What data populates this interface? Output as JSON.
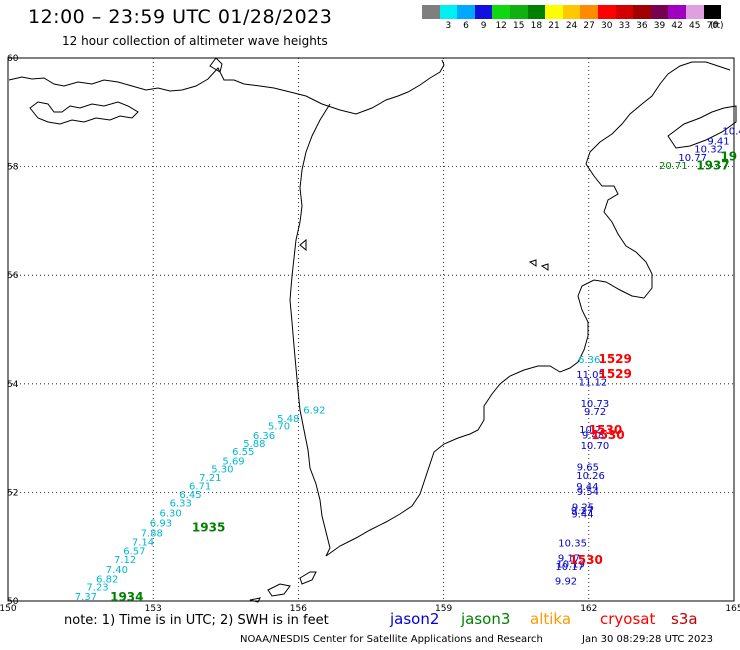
{
  "header": {
    "title": "12:00 – 23:59 UTC 01/28/2023",
    "subtitle": "12 hour collection of altimeter wave heights"
  },
  "color_scale": {
    "colors": [
      "#7f7f7f",
      "#00f0f0",
      "#00a8ff",
      "#1010e0",
      "#10d810",
      "#10b010",
      "#008000",
      "#ffff00",
      "#ffc800",
      "#ff8c00",
      "#ff0000",
      "#d40000",
      "#a00000",
      "#780050",
      "#a000c0",
      "#e0a0e0",
      "#000000"
    ],
    "labels": [
      "",
      "3",
      "6",
      "9",
      "12",
      "15",
      "18",
      "21",
      "24",
      "27",
      "30",
      "33",
      "36",
      "39",
      "42",
      "45",
      "70"
    ],
    "unit": "(ft)"
  },
  "map": {
    "lon_ticks": [
      "150",
      "153",
      "156",
      "159",
      "162",
      "165"
    ],
    "lat_ticks": [
      "50",
      "52",
      "54",
      "56",
      "58",
      "60"
    ],
    "grid": true
  },
  "tracks": [
    {
      "mission": "jason2-cyan",
      "color": "#00b8d0",
      "labels": [
        {
          "t": "7.37",
          "lon": 151.38,
          "lat": 50.02
        },
        {
          "t": "7.23",
          "lon": 151.62,
          "lat": 50.19
        },
        {
          "t": "6.82",
          "lon": 151.82,
          "lat": 50.34
        },
        {
          "t": "7.40",
          "lon": 152.02,
          "lat": 50.52
        },
        {
          "t": "7.12",
          "lon": 152.19,
          "lat": 50.7
        },
        {
          "t": "6.57",
          "lon": 152.38,
          "lat": 50.86
        },
        {
          "t": "7.14",
          "lon": 152.56,
          "lat": 51.02
        },
        {
          "t": "7.88",
          "lon": 152.74,
          "lat": 51.19
        },
        {
          "t": "6.93",
          "lon": 152.93,
          "lat": 51.37
        },
        {
          "t": "6.30",
          "lon": 153.13,
          "lat": 51.56
        },
        {
          "t": "6.33",
          "lon": 153.34,
          "lat": 51.74
        },
        {
          "t": "6.45",
          "lon": 153.54,
          "lat": 51.9
        },
        {
          "t": "6.71",
          "lon": 153.74,
          "lat": 52.05
        },
        {
          "t": "7.21",
          "lon": 153.95,
          "lat": 52.21
        },
        {
          "t": "5.30",
          "lon": 154.2,
          "lat": 52.37
        },
        {
          "t": "5.69",
          "lon": 154.43,
          "lat": 52.51
        },
        {
          "t": "6.55",
          "lon": 154.63,
          "lat": 52.69
        },
        {
          "t": "5.88",
          "lon": 154.86,
          "lat": 52.84
        },
        {
          "t": "6.36",
          "lon": 155.06,
          "lat": 52.98
        },
        {
          "t": "5.70",
          "lon": 155.37,
          "lat": 53.16
        },
        {
          "t": "5.48",
          "lon": 155.56,
          "lat": 53.3
        },
        {
          "t": "6.92",
          "lon": 156.1,
          "lat": 53.45
        }
      ]
    },
    {
      "mission": "jason2-cyan",
      "color": "#00b8d0",
      "labels": [
        {
          "t": "6.36",
          "lon": 161.78,
          "lat": 54.38
        }
      ]
    },
    {
      "mission": "jason2-blue",
      "color": "#0000d0",
      "labels": [
        {
          "t": "11.05",
          "lon": 161.74,
          "lat": 54.11
        },
        {
          "t": "11.12",
          "lon": 161.79,
          "lat": 53.97
        },
        {
          "t": "10.73",
          "lon": 161.83,
          "lat": 53.57
        },
        {
          "t": "9.72",
          "lon": 161.9,
          "lat": 53.43
        },
        {
          "t": "10.2",
          "lon": 161.8,
          "lat": 53.09
        },
        {
          "t": "9.48",
          "lon": 161.86,
          "lat": 52.99
        },
        {
          "t": "10.70",
          "lon": 161.83,
          "lat": 52.8
        },
        {
          "t": "9.65",
          "lon": 161.75,
          "lat": 52.4
        },
        {
          "t": "10.26",
          "lon": 161.74,
          "lat": 52.25
        },
        {
          "t": "9.44",
          "lon": 161.74,
          "lat": 52.04
        },
        {
          "t": "9.54",
          "lon": 161.75,
          "lat": 51.95
        },
        {
          "t": "9.25",
          "lon": 161.65,
          "lat": 51.67
        },
        {
          "t": "9.27",
          "lon": 161.63,
          "lat": 51.6
        },
        {
          "t": "9.44",
          "lon": 161.64,
          "lat": 51.54
        },
        {
          "t": "10.35",
          "lon": 161.37,
          "lat": 51.0
        },
        {
          "t": "9.17",
          "lon": 161.36,
          "lat": 50.73
        },
        {
          "t": "10.19",
          "lon": 161.33,
          "lat": 50.62
        },
        {
          "t": "10.17",
          "lon": 161.31,
          "lat": 50.57
        },
        {
          "t": "9.92",
          "lon": 161.3,
          "lat": 50.3
        }
      ]
    },
    {
      "mission": "jason2-blue",
      "color": "#0000d0",
      "labels": [
        {
          "t": "10.4",
          "lon": 164.76,
          "lat": 58.59
        },
        {
          "t": "9.41",
          "lon": 164.45,
          "lat": 58.41
        },
        {
          "t": "10.32",
          "lon": 164.18,
          "lat": 58.26
        },
        {
          "t": "10.77",
          "lon": 163.85,
          "lat": 58.1
        }
      ]
    },
    {
      "mission": "jason3",
      "color": "#008000",
      "labels": [
        {
          "t": "20.71",
          "lon": 163.45,
          "lat": 57.96
        }
      ]
    }
  ],
  "time_labels": [
    {
      "t": "1529",
      "color": "#ff0000",
      "lon": 162.2,
      "lat": 54.38
    },
    {
      "t": "1529",
      "color": "#ff0000",
      "lon": 162.2,
      "lat": 54.11
    },
    {
      "t": "1530",
      "color": "#ff0000",
      "lon": 162.0,
      "lat": 53.08
    },
    {
      "t": "1530",
      "color": "#ff0000",
      "lon": 162.05,
      "lat": 52.98
    },
    {
      "t": "1530",
      "color": "#ff0000",
      "lon": 161.6,
      "lat": 50.68
    },
    {
      "t": "1935",
      "color": "#008000",
      "lon": 153.8,
      "lat": 51.28
    },
    {
      "t": "1934",
      "color": "#008000",
      "lon": 152.11,
      "lat": 50.0
    },
    {
      "t": "1937",
      "color": "#008000",
      "lon": 164.22,
      "lat": 57.95
    },
    {
      "t": "19",
      "color": "#008000",
      "lon": 164.72,
      "lat": 58.11
    }
  ],
  "footer": {
    "note": "note: 1) Time is in UTC; 2) SWH is in feet",
    "missions": [
      {
        "name": "jason2",
        "color": "#0000e0"
      },
      {
        "name": "jason3",
        "color": "#008000"
      },
      {
        "name": "altika",
        "color": "#ff9900"
      },
      {
        "name": "cryosat",
        "color": "#ff0000"
      },
      {
        "name": "s3a",
        "color": "#c00000"
      }
    ],
    "credit": "NOAA/NESDIS Center for Satellite Applications and Research",
    "timestamp": "Jan 30 08:29:28 UTC 2023"
  }
}
